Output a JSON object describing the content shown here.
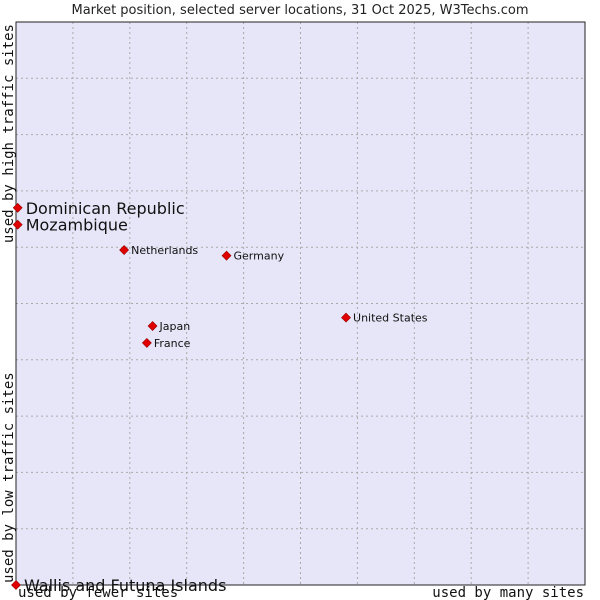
{
  "chart_data": {
    "type": "scatter",
    "title": "Market position, selected server locations, 31 Oct 2025, W3Techs.com",
    "x_axis": {
      "low_label": "used by fewer sites",
      "high_label": "used by many sites",
      "range": [
        0,
        100
      ]
    },
    "y_axis": {
      "low_label": "used by low traffic sites",
      "high_label": "used by high traffic sites",
      "range": [
        0,
        100
      ]
    },
    "grid": true,
    "points": [
      {
        "name": "Dominican Republic",
        "x": 0.3,
        "y": 67.0,
        "emphasis": true
      },
      {
        "name": "Mozambique",
        "x": 0.3,
        "y": 64.0,
        "emphasis": true
      },
      {
        "name": "Wallis and Futuna Islands",
        "x": 0.0,
        "y": 0.0,
        "emphasis": true
      },
      {
        "name": "Netherlands",
        "x": 19.0,
        "y": 59.5,
        "emphasis": false
      },
      {
        "name": "Germany",
        "x": 37.0,
        "y": 58.5,
        "emphasis": false
      },
      {
        "name": "United States",
        "x": 58.0,
        "y": 47.5,
        "emphasis": false
      },
      {
        "name": "Japan",
        "x": 24.0,
        "y": 46.0,
        "emphasis": false
      },
      {
        "name": "France",
        "x": 23.0,
        "y": 43.0,
        "emphasis": false
      }
    ],
    "colors": {
      "plot_background": "#e6e6f8",
      "grid": "#aaaaaa",
      "frame": "#222222",
      "marker": "#e00000"
    }
  }
}
